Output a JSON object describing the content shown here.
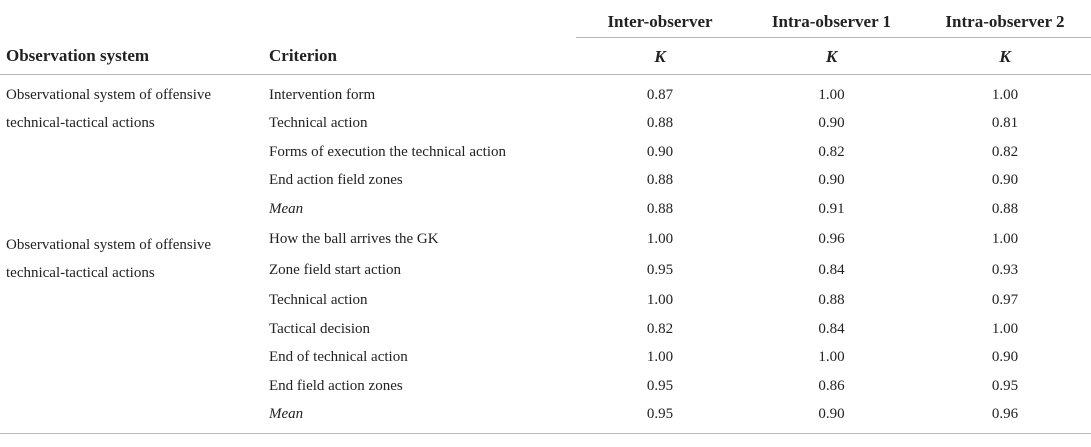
{
  "table": {
    "group_headers": [
      "Inter-observer",
      "Intra-observer 1",
      "Intra-observer 2"
    ],
    "col_headers": [
      "Observation system",
      "Criterion"
    ],
    "stat_symbol": "K",
    "sections": [
      {
        "system": "Observational system of offensive technical-tactical actions",
        "system_line1": "Observational system of offensive",
        "system_line2": "technical-tactical actions",
        "rows": [
          {
            "criterion": "Intervention form",
            "inter": "0.87",
            "intra1": "1.00",
            "intra2": "1.00"
          },
          {
            "criterion": "Technical action",
            "inter": "0.88",
            "intra1": "0.90",
            "intra2": "0.81"
          },
          {
            "criterion": "Forms of execution the technical action",
            "inter": "0.90",
            "intra1": "0.82",
            "intra2": "0.82"
          },
          {
            "criterion": "End action field zones",
            "inter": "0.88",
            "intra1": "0.90",
            "intra2": "0.90"
          },
          {
            "criterion": "Mean",
            "inter": "0.88",
            "intra1": "0.91",
            "intra2": "0.88",
            "italic": true
          }
        ]
      },
      {
        "system": "Observational system of offensive technical-tactical actions",
        "system_line1": "Observational system of offensive",
        "system_line2": "technical-tactical actions",
        "rows": [
          {
            "criterion": "How the ball arrives the GK",
            "inter": "1.00",
            "intra1": "0.96",
            "intra2": "1.00"
          },
          {
            "criterion": "Zone field start action",
            "inter": "0.95",
            "intra1": "0.84",
            "intra2": "0.93"
          },
          {
            "criterion": "Technical action",
            "inter": "1.00",
            "intra1": "0.88",
            "intra2": "0.97"
          },
          {
            "criterion": "Tactical decision",
            "inter": "0.82",
            "intra1": "0.84",
            "intra2": "1.00"
          },
          {
            "criterion": "End of technical action",
            "inter": "1.00",
            "intra1": "1.00",
            "intra2": "0.90"
          },
          {
            "criterion": "End field action zones",
            "inter": "0.95",
            "intra1": "0.86",
            "intra2": "0.95"
          },
          {
            "criterion": "Mean",
            "inter": "0.95",
            "intra1": "0.90",
            "intra2": "0.96",
            "italic": true
          }
        ]
      }
    ]
  }
}
